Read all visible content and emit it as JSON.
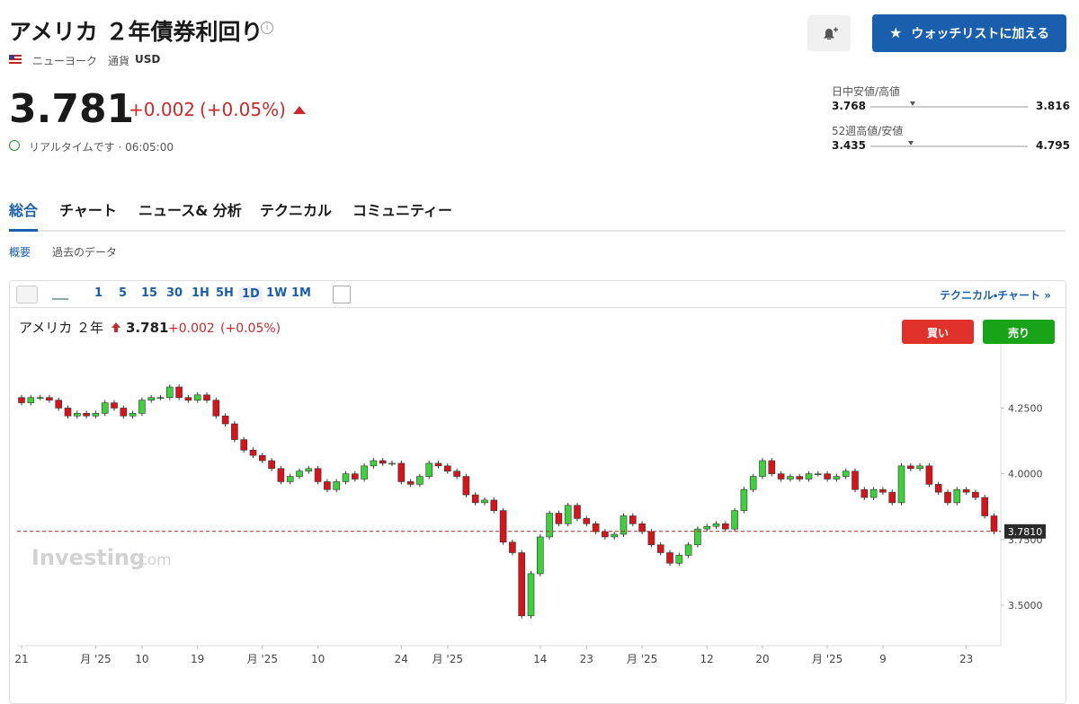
{
  "header": {
    "title": "アメリカ ２年債券利回り",
    "exchange": "ニューヨーク",
    "currency_label": "通貨",
    "currency": "USD",
    "price": 3.781,
    "change": "+0.002",
    "change_pct": "(+0.05%)",
    "status": "リアルタイムです · 06:05:00",
    "watchlist_button": "ウォッチリストに加える"
  },
  "ranges": [
    {
      "label": "日中安値/高値",
      "low": 3.768,
      "high": 3.816
    },
    {
      "label": "52週高値/安値",
      "low": 3.435,
      "high": 4.795
    }
  ],
  "tabs": [
    "総合",
    "チャート",
    "ニュース& 分析",
    "テクニカル",
    "コミュニティー"
  ],
  "subtabs": [
    "概要",
    "過去のデータ"
  ],
  "intervals": [
    "1",
    "5",
    "15",
    "30",
    "1H",
    "5H",
    "1D",
    "1W",
    "1M"
  ],
  "technical_link": "テクニカル・チャート »",
  "chart_data": {
    "type": "candlestick",
    "title": "アメリカ ２年",
    "last": 3.781,
    "change": "+0.002",
    "change_pct": "(+0.05%)",
    "buy": "買い",
    "sell": "売り",
    "watermark": [
      "Investing",
      ".com"
    ],
    "up_color": "#3fcf3f",
    "down_color": "#d3151c",
    "categories": [
      "21",
      null,
      null,
      null,
      null,
      null,
      null,
      null,
      "月 '25",
      null,
      null,
      null,
      null,
      "10",
      null,
      null,
      null,
      null,
      null,
      "19",
      null,
      null,
      null,
      null,
      null,
      null,
      "月 '25",
      null,
      null,
      null,
      null,
      null,
      "10",
      null,
      null,
      null,
      null,
      null,
      null,
      null,
      null,
      "24",
      null,
      null,
      null,
      null,
      "月 '25",
      null,
      null,
      null,
      null,
      null,
      null,
      null,
      null,
      null,
      "14",
      null,
      null,
      null,
      null,
      "23",
      null,
      null,
      null,
      null,
      null,
      "月 '25",
      null,
      null,
      null,
      null,
      null,
      null,
      "12",
      null,
      null,
      null,
      null,
      null,
      "20",
      null,
      null,
      null,
      null,
      null,
      null,
      "月 '25",
      null,
      null,
      null,
      null,
      null,
      "9",
      null,
      null,
      null,
      null,
      null,
      null,
      null,
      null,
      "23",
      null,
      null,
      null
    ],
    "open": [
      4.29,
      4.27,
      4.29,
      4.29,
      4.28,
      4.25,
      4.22,
      4.23,
      4.22,
      4.23,
      4.27,
      4.25,
      4.22,
      4.23,
      4.28,
      4.29,
      4.29,
      4.33,
      4.29,
      4.28,
      4.3,
      4.28,
      4.22,
      4.19,
      4.13,
      4.09,
      4.07,
      4.05,
      4.02,
      3.97,
      3.99,
      4.01,
      4.02,
      3.97,
      3.94,
      3.97,
      4.0,
      3.98,
      4.03,
      4.05,
      4.04,
      4.04,
      3.97,
      3.96,
      3.99,
      4.04,
      4.03,
      4.01,
      3.99,
      3.92,
      3.89,
      3.9,
      3.86,
      3.74,
      3.7,
      3.46,
      3.62,
      3.76,
      3.85,
      3.81,
      3.88,
      3.83,
      3.81,
      3.78,
      3.76,
      3.77,
      3.84,
      3.81,
      3.78,
      3.73,
      3.7,
      3.66,
      3.69,
      3.73,
      3.79,
      3.8,
      3.81,
      3.79,
      3.86,
      3.94,
      3.99,
      4.05,
      4.0,
      3.98,
      3.99,
      3.98,
      4.0,
      4.0,
      3.98,
      3.99,
      4.01,
      3.94,
      3.91,
      3.94,
      3.93,
      3.89,
      4.03,
      4.02,
      4.03,
      3.96,
      3.93,
      3.89,
      3.94,
      3.93,
      3.91,
      3.84
    ],
    "high": [
      4.3,
      4.3,
      4.3,
      4.3,
      4.29,
      4.26,
      4.24,
      4.24,
      4.24,
      4.28,
      4.28,
      4.26,
      4.24,
      4.29,
      4.3,
      4.3,
      4.34,
      4.34,
      4.3,
      4.31,
      4.31,
      4.29,
      4.23,
      4.2,
      4.14,
      4.1,
      4.08,
      4.06,
      4.03,
      4.0,
      4.02,
      4.03,
      4.03,
      3.98,
      3.98,
      4.01,
      4.01,
      4.04,
      4.06,
      4.06,
      4.05,
      4.05,
      3.98,
      4.0,
      4.05,
      4.05,
      4.04,
      4.02,
      4.0,
      3.93,
      3.91,
      3.91,
      3.87,
      3.75,
      3.71,
      3.63,
      3.77,
      3.86,
      3.86,
      3.89,
      3.89,
      3.84,
      3.82,
      3.79,
      3.78,
      3.85,
      3.85,
      3.82,
      3.79,
      3.74,
      3.71,
      3.7,
      3.74,
      3.8,
      3.81,
      3.82,
      3.82,
      3.87,
      3.95,
      4.0,
      4.06,
      4.06,
      4.01,
      4.0,
      4.0,
      4.01,
      4.01,
      4.01,
      4.0,
      4.02,
      4.02,
      3.95,
      3.95,
      3.95,
      3.94,
      4.04,
      4.04,
      4.04,
      4.04,
      3.97,
      3.94,
      3.95,
      3.95,
      3.94,
      3.92,
      3.85
    ],
    "low": [
      4.26,
      4.26,
      4.28,
      4.27,
      4.24,
      4.21,
      4.21,
      4.21,
      4.21,
      4.22,
      4.24,
      4.21,
      4.21,
      4.22,
      4.27,
      4.28,
      4.28,
      4.28,
      4.27,
      4.27,
      4.27,
      4.21,
      4.18,
      4.12,
      4.08,
      4.06,
      4.04,
      4.01,
      3.96,
      3.96,
      3.98,
      4.0,
      3.96,
      3.93,
      3.93,
      3.96,
      3.97,
      3.97,
      4.02,
      4.03,
      4.03,
      3.96,
      3.95,
      3.95,
      3.98,
      4.02,
      4.0,
      3.98,
      3.91,
      3.88,
      3.88,
      3.85,
      3.73,
      3.69,
      3.45,
      3.45,
      3.61,
      3.75,
      3.8,
      3.8,
      3.82,
      3.8,
      3.77,
      3.75,
      3.75,
      3.76,
      3.8,
      3.77,
      3.72,
      3.69,
      3.65,
      3.65,
      3.68,
      3.72,
      3.78,
      3.79,
      3.78,
      3.78,
      3.85,
      3.93,
      3.98,
      3.99,
      3.97,
      3.97,
      3.97,
      3.97,
      3.99,
      3.97,
      3.97,
      3.98,
      3.93,
      3.9,
      3.9,
      3.92,
      3.88,
      3.88,
      4.01,
      4.01,
      3.95,
      3.92,
      3.88,
      3.88,
      3.92,
      3.9,
      3.83,
      3.77
    ],
    "close": [
      4.27,
      4.29,
      4.29,
      4.28,
      4.25,
      4.22,
      4.23,
      4.22,
      4.23,
      4.27,
      4.25,
      4.22,
      4.23,
      4.28,
      4.29,
      4.29,
      4.33,
      4.29,
      4.28,
      4.3,
      4.28,
      4.22,
      4.19,
      4.13,
      4.09,
      4.07,
      4.05,
      4.02,
      3.97,
      3.99,
      4.01,
      4.02,
      3.97,
      3.94,
      3.97,
      4.0,
      3.98,
      4.03,
      4.05,
      4.04,
      4.04,
      3.97,
      3.96,
      3.99,
      4.04,
      4.03,
      4.01,
      3.99,
      3.92,
      3.89,
      3.9,
      3.86,
      3.74,
      3.7,
      3.46,
      3.62,
      3.76,
      3.85,
      3.81,
      3.88,
      3.83,
      3.81,
      3.78,
      3.76,
      3.77,
      3.84,
      3.81,
      3.78,
      3.73,
      3.7,
      3.66,
      3.69,
      3.73,
      3.79,
      3.8,
      3.81,
      3.79,
      3.86,
      3.94,
      3.99,
      4.05,
      4.0,
      3.98,
      3.99,
      3.98,
      4.0,
      4.0,
      3.98,
      3.99,
      4.01,
      3.94,
      3.91,
      3.94,
      3.93,
      3.89,
      4.03,
      4.02,
      4.03,
      3.96,
      3.93,
      3.89,
      3.94,
      3.93,
      3.91,
      3.84,
      3.781
    ],
    "ylim": [
      3.35,
      4.47
    ],
    "yticks": [
      {
        "value": 3.5,
        "label": "3.5000"
      },
      {
        "value": 3.75,
        "label": "3.7500"
      },
      {
        "value": 4,
        "label": "4.0000"
      },
      {
        "value": 4.25,
        "label": "4.2500"
      }
    ],
    "grid": false,
    "price_line": {
      "value": 3.781,
      "label": "3.7810"
    }
  }
}
